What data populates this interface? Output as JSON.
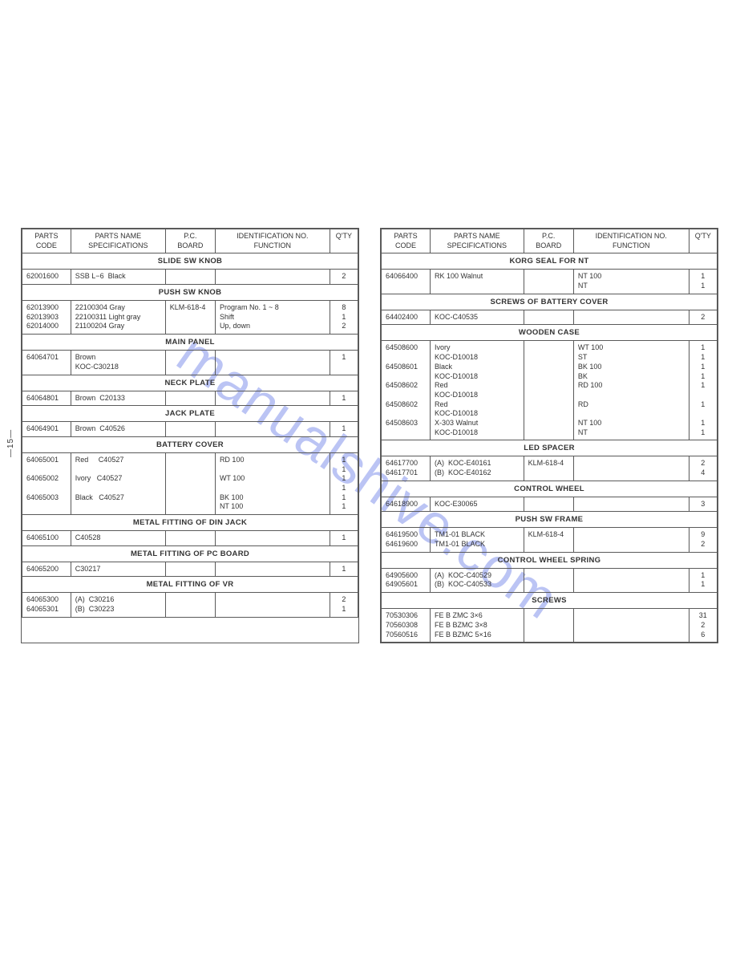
{
  "watermark": "manualshive.com",
  "page_number": "—15—",
  "columns": {
    "code": "PARTS\nCODE",
    "spec": "PARTS NAME\nSPECIFICATIONS",
    "pcb": "P.C.\nBOARD",
    "fun": "IDENTIFICATION NO.\nFUNCTION",
    "qty": "Q'TY"
  },
  "left": [
    {
      "section": "SLIDE SW KNOB"
    },
    {
      "code": "62001600",
      "spec": "SSB L−6  Black",
      "pcb": "",
      "fun": "",
      "qty": "2"
    },
    {
      "section": "PUSH SW KNOB"
    },
    {
      "code": "62013900\n62013903\n62014000",
      "spec": "22100304 Gray\n22100311 Light gray\n21100204 Gray",
      "pcb": "KLM-618-4",
      "fun": "Program No. 1 ~ 8\nShift\nUp, down",
      "qty": "8\n1\n2"
    },
    {
      "section": "MAIN PANEL"
    },
    {
      "code": "64064701",
      "spec": "Brown\nKOC-C30218",
      "pcb": "",
      "fun": "",
      "qty": "1"
    },
    {
      "section": "NECK PLATE"
    },
    {
      "code": "64064801",
      "spec": "Brown  C20133",
      "pcb": "",
      "fun": "",
      "qty": "1"
    },
    {
      "section": "JACK PLATE"
    },
    {
      "code": "64064901",
      "spec": "Brown  C40526",
      "pcb": "",
      "fun": "",
      "qty": "1"
    },
    {
      "section": "BATTERY COVER"
    },
    {
      "code": "64065001\n\n64065002\n\n64065003",
      "spec": "Red     C40527\n\nIvory   C40527\n\nBlack   C40527",
      "pcb": "",
      "fun": "RD 100\n\nWT 100\n\nBK 100\nNT 100",
      "qty": "1\n1\n1\n1\n1\n1"
    },
    {
      "section": "METAL FITTING OF DIN JACK"
    },
    {
      "code": "64065100",
      "spec": "C40528",
      "pcb": "",
      "fun": "",
      "qty": "1"
    },
    {
      "section": "METAL FITTING OF PC BOARD"
    },
    {
      "code": "64065200",
      "spec": "C30217",
      "pcb": "",
      "fun": "",
      "qty": "1"
    },
    {
      "section": "METAL FITTING OF VR"
    },
    {
      "code": "64065300\n64065301",
      "spec": "(A)  C30216\n(B)  C30223",
      "pcb": "",
      "fun": "",
      "qty": "2\n1"
    }
  ],
  "right": [
    {
      "section": "KORG SEAL FOR NT"
    },
    {
      "code": "64066400",
      "spec": "RK 100 Walnut",
      "pcb": "",
      "fun": "NT 100\nNT",
      "qty": "1\n1"
    },
    {
      "section": "SCREWS OF BATTERY COVER"
    },
    {
      "code": "64402400",
      "spec": "KOC-C40535",
      "pcb": "",
      "fun": "",
      "qty": "2"
    },
    {
      "section": "WOODEN CASE"
    },
    {
      "code": "64508600\n\n64508601\n\n64508602\n\n64508602\n\n64508603",
      "spec": "Ivory\nKOC-D10018\nBlack\nKOC-D10018\nRed\nKOC-D10018\nRed\nKOC-D10018\nX-303 Walnut\nKOC-D10018",
      "pcb": "",
      "fun": "WT 100\nST\nBK 100\nBK\nRD 100\n\nRD\n\nNT 100\nNT",
      "qty": "1\n1\n1\n1\n1\n\n1\n\n1\n1"
    },
    {
      "section": "LED SPACER"
    },
    {
      "code": "64617700\n64617701",
      "spec": "(A)  KOC-E40161\n(B)  KOC-E40162",
      "pcb": "KLM-618-4",
      "fun": "",
      "qty": "2\n4"
    },
    {
      "section": "CONTROL WHEEL"
    },
    {
      "code": "64618900",
      "spec": "KOC-E30065",
      "pcb": "",
      "fun": "",
      "qty": "3"
    },
    {
      "section": "PUSH SW FRAME"
    },
    {
      "code": "64619500\n64619600",
      "spec": "TM1-01 BLACK\nTM1-01 BLACK",
      "pcb": "KLM-618-4",
      "fun": "",
      "qty": "9\n2"
    },
    {
      "section": "CONTROL WHEEL SPRING"
    },
    {
      "code": "64905600\n64905601",
      "spec": "(A)  KOC-C40529\n(B)  KOC-C40533",
      "pcb": "",
      "fun": "",
      "qty": "1\n1"
    },
    {
      "section": "SCREWS"
    },
    {
      "code": "70530306\n70560308\n70560516",
      "spec": "FE B ZMC 3×6\nFE B BZMC 3×8\nFE B BZMC 5×16",
      "pcb": "",
      "fun": "",
      "qty": "31\n2\n6"
    }
  ]
}
